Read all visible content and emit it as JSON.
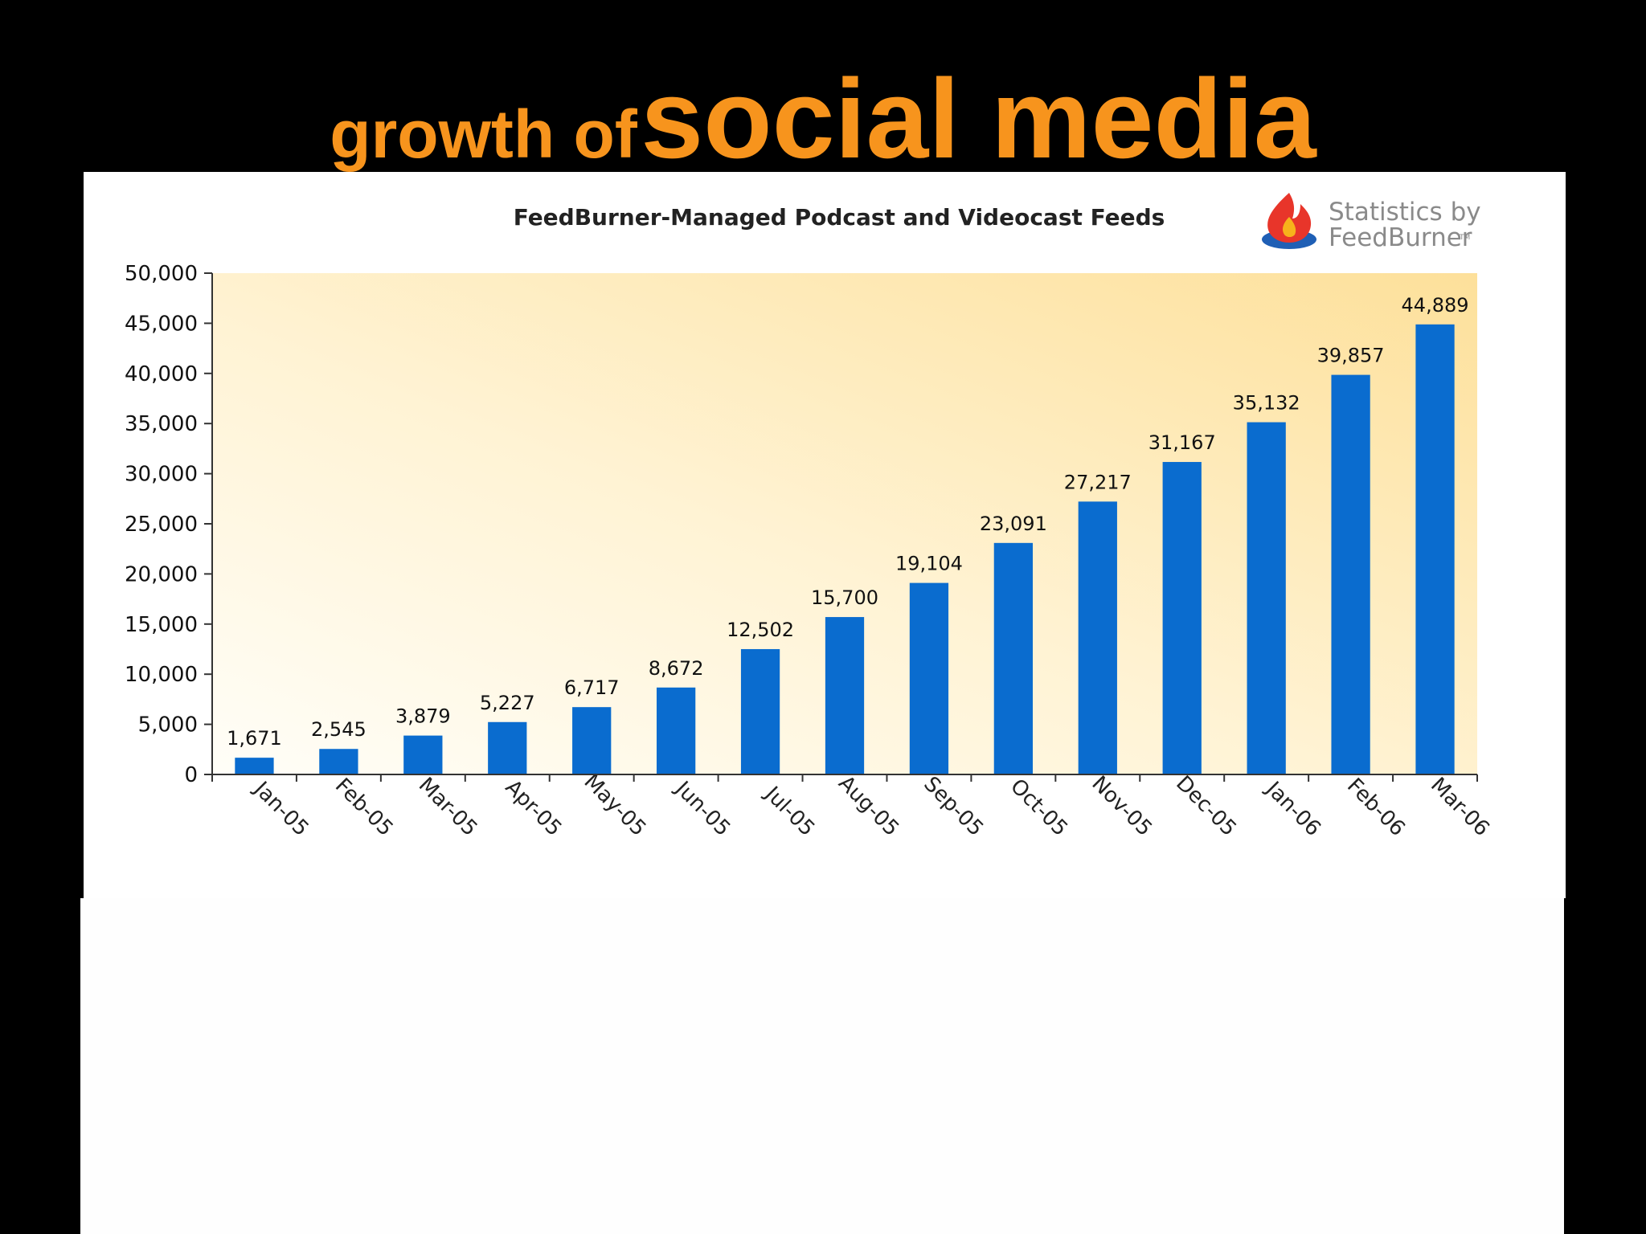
{
  "slide": {
    "title_prefix": "growth of",
    "title_main": "social media",
    "title_color": "#f7941d",
    "background": "#000000"
  },
  "logo": {
    "line1": "Statistics by",
    "line2": "FeedBurner",
    "mark": "TM",
    "icon": "flame-icon"
  },
  "chart_data": {
    "type": "bar",
    "title": "FeedBurner-Managed Podcast and Videocast Feeds",
    "xlabel": "",
    "ylabel": "",
    "categories": [
      "Jan-05",
      "Feb-05",
      "Mar-05",
      "Apr-05",
      "May-05",
      "Jun-05",
      "Jul-05",
      "Aug-05",
      "Sep-05",
      "Oct-05",
      "Nov-05",
      "Dec-05",
      "Jan-06",
      "Feb-06",
      "Mar-06"
    ],
    "values": [
      1671,
      2545,
      3879,
      5227,
      6717,
      8672,
      12502,
      15700,
      19104,
      23091,
      27217,
      31167,
      35132,
      39857,
      44889
    ],
    "value_labels": [
      "1,671",
      "2,545",
      "3,879",
      "5,227",
      "6,717",
      "8,672",
      "12,502",
      "15,700",
      "19,104",
      "23,091",
      "27,217",
      "31,167",
      "35,132",
      "39,857",
      "44,889"
    ],
    "ylim": [
      0,
      50000
    ],
    "yticks": [
      0,
      5000,
      10000,
      15000,
      20000,
      25000,
      30000,
      35000,
      40000,
      45000,
      50000
    ],
    "ytick_labels": [
      "0",
      "5,000",
      "10,000",
      "15,000",
      "20,000",
      "25,000",
      "30,000",
      "35,000",
      "40,000",
      "45,000",
      "50,000"
    ],
    "grid": false,
    "bar_color": "#0a6ccf",
    "plot_background": "gradient: light cream at bottom-left to pale orange at top-right"
  }
}
